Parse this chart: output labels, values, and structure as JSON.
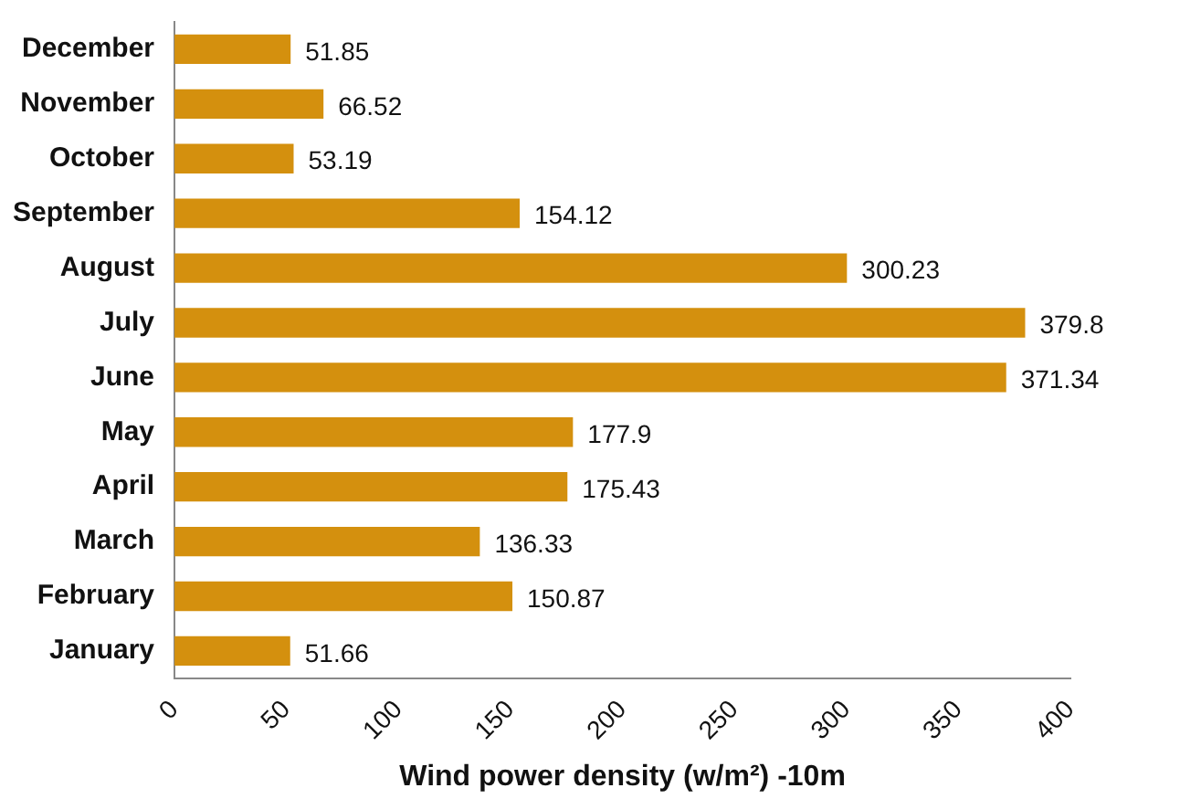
{
  "chart_data": {
    "type": "bar",
    "orientation": "horizontal",
    "xlabel": "Wind power density (w/m²) -10m",
    "categories": [
      "December",
      "November",
      "October",
      "September",
      "August",
      "July",
      "June",
      "May",
      "April",
      "March",
      "February",
      "January"
    ],
    "values": [
      51.85,
      66.52,
      53.19,
      154.12,
      300.23,
      379.8,
      371.34,
      177.9,
      175.43,
      136.33,
      150.87,
      51.66
    ],
    "color": "#d4900e",
    "xlim": [
      0,
      400
    ],
    "xticks": [
      0,
      50,
      100,
      150,
      200,
      250,
      300,
      350,
      400
    ],
    "grid": false,
    "legend": false,
    "data_labels": true
  }
}
